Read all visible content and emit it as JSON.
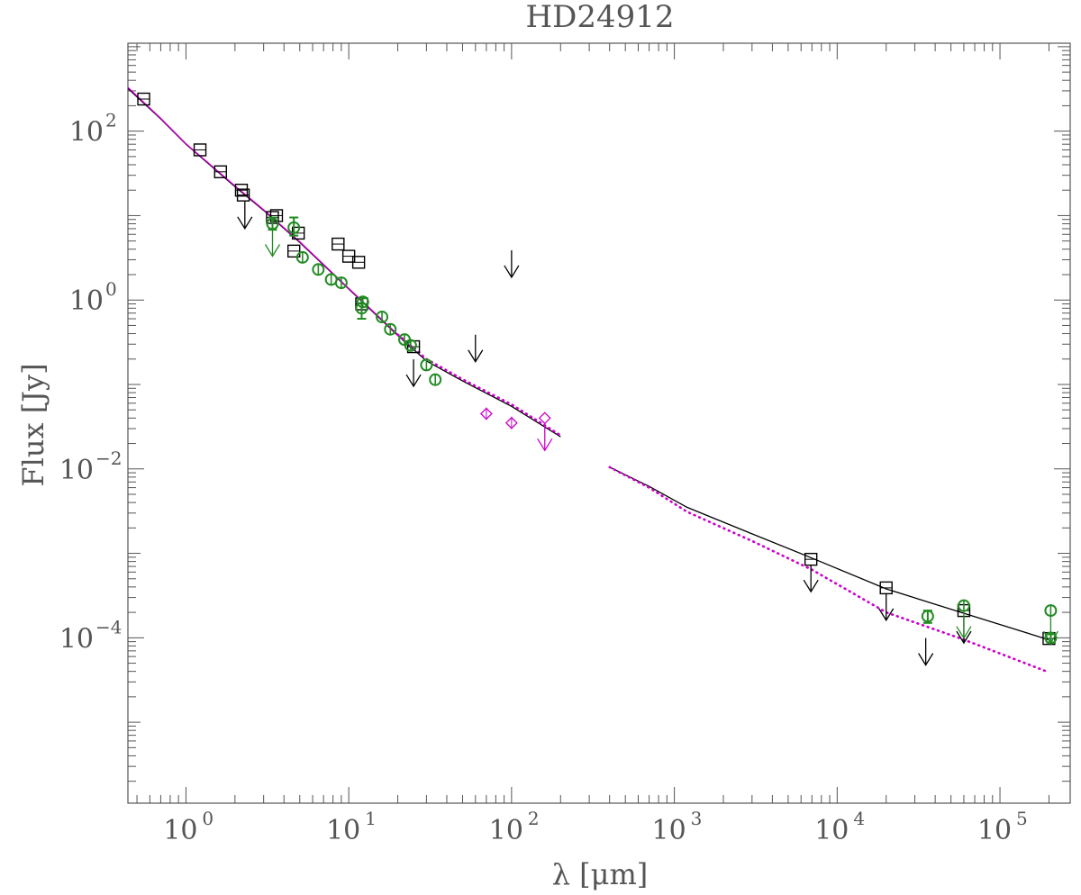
{
  "chart_data": {
    "type": "scatter",
    "title": "HD24912",
    "xlabel": "λ [μm]",
    "ylabel": "Flux [Jy]",
    "x_scale": "log",
    "y_scale": "log",
    "xlim": [
      0.44,
      270000
    ],
    "ylim": [
      1.1e-06,
      1100
    ],
    "grid": false,
    "legend": "none",
    "colors": {
      "black": "#000000",
      "green": "#228b22",
      "magenta": "#cc00cc",
      "axis": "#555555"
    },
    "x_ticks": [
      {
        "value": 1,
        "label": "10",
        "exp": "0"
      },
      {
        "value": 10,
        "label": "10",
        "exp": "1"
      },
      {
        "value": 100,
        "label": "10",
        "exp": "2"
      },
      {
        "value": 1000,
        "label": "10",
        "exp": "3"
      },
      {
        "value": 10000,
        "label": "10",
        "exp": "4"
      },
      {
        "value": 100000,
        "label": "10",
        "exp": "5"
      }
    ],
    "y_ticks": [
      {
        "value": 100,
        "label": "10",
        "exp": "2"
      },
      {
        "value": 1,
        "label": "10",
        "exp": "0"
      },
      {
        "value": 0.01,
        "label": "10",
        "exp": "−2"
      },
      {
        "value": 0.0001,
        "label": "10",
        "exp": "−4"
      }
    ],
    "model_lines": [
      {
        "style": "solid",
        "color": "#000000",
        "points": [
          [
            0.44,
            320
          ],
          [
            0.7,
            140
          ],
          [
            1,
            70
          ],
          [
            2,
            22
          ],
          [
            3,
            11.5
          ],
          [
            5,
            4.8
          ],
          [
            10,
            1.35
          ],
          [
            20,
            0.38
          ],
          [
            30,
            0.19
          ],
          [
            50,
            0.11
          ],
          [
            100,
            0.055
          ],
          [
            200,
            0.024
          ]
        ]
      },
      {
        "style": "solid",
        "color": "#cc00cc",
        "points": [
          [
            0.44,
            330
          ],
          [
            0.7,
            142
          ],
          [
            1,
            71
          ],
          [
            2,
            22.5
          ],
          [
            3,
            11.7
          ],
          [
            5,
            4.9
          ],
          [
            10,
            1.37
          ],
          [
            20,
            0.39
          ]
        ]
      },
      {
        "style": "dotted",
        "color": "#cc00cc",
        "points": [
          [
            20,
            0.39
          ],
          [
            30,
            0.2
          ],
          [
            50,
            0.115
          ],
          [
            100,
            0.058
          ],
          [
            200,
            0.025
          ]
        ]
      },
      {
        "style": "solid",
        "color": "#000000",
        "points": [
          [
            400,
            0.0105
          ],
          [
            700,
            0.0062
          ],
          [
            1200,
            0.0035
          ],
          [
            3000,
            0.0017
          ],
          [
            7000,
            0.00088
          ],
          [
            20000,
            0.00038
          ],
          [
            60000,
            0.000195
          ],
          [
            200000,
            9.45e-05
          ]
        ]
      },
      {
        "style": "dotted",
        "color": "#cc00cc",
        "points": [
          [
            400,
            0.0105
          ],
          [
            700,
            0.006
          ],
          [
            1200,
            0.0031
          ],
          [
            3000,
            0.0014
          ],
          [
            7000,
            0.00064
          ],
          [
            20000,
            0.0002
          ],
          [
            60000,
            9.5e-05
          ],
          [
            200000,
            3.9e-05
          ]
        ]
      }
    ],
    "series": [
      {
        "marker": "square",
        "color": "#000000",
        "points": [
          {
            "x": 0.55,
            "y": 240
          },
          {
            "x": 1.22,
            "y": 60
          },
          {
            "x": 1.63,
            "y": 33
          },
          {
            "x": 2.19,
            "y": 20
          },
          {
            "x": 2.25,
            "y": 17.5
          },
          {
            "x": 3.4,
            "y": 9.5
          },
          {
            "x": 3.6,
            "y": 10
          },
          {
            "x": 4.6,
            "y": 3.8
          },
          {
            "x": 4.9,
            "y": 6.2
          },
          {
            "x": 8.6,
            "y": 4.6
          },
          {
            "x": 10,
            "y": 3.3
          },
          {
            "x": 11.5,
            "y": 2.8
          },
          {
            "x": 12,
            "y": 0.9
          },
          {
            "x": 25,
            "y": 0.28
          },
          {
            "x": 6900,
            "y": 0.00085
          },
          {
            "x": 20000,
            "y": 0.00039
          },
          {
            "x": 60000,
            "y": 0.00021
          },
          {
            "x": 200000,
            "y": 9.8e-05
          }
        ]
      },
      {
        "marker": "square_upper_limit",
        "color": "#000000",
        "points": [
          {
            "x": 2.3,
            "y": 17
          },
          {
            "x": 25,
            "y": 0.23
          },
          {
            "x": 60,
            "y": 0.45
          },
          {
            "x": 100,
            "y": 4.5
          },
          {
            "x": 6900,
            "y": 0.00085
          },
          {
            "x": 20000,
            "y": 0.00039
          },
          {
            "x": 35000,
            "y": 0.000115
          },
          {
            "x": 60000,
            "y": 0.00021
          }
        ]
      },
      {
        "marker": "circle",
        "color": "#228b22",
        "points": [
          {
            "x": 3.4,
            "y": 8,
            "err": [
              6.8,
              9.5
            ]
          },
          {
            "x": 4.6,
            "y": 7.2,
            "err": [
              5.8,
              9.5
            ]
          },
          {
            "x": 5.2,
            "y": 3.2
          },
          {
            "x": 6.5,
            "y": 2.3
          },
          {
            "x": 7.8,
            "y": 1.75
          },
          {
            "x": 9,
            "y": 1.6
          },
          {
            "x": 12,
            "y": 0.8,
            "err": [
              0.6,
              1.05
            ]
          },
          {
            "x": 12.2,
            "y": 0.95
          },
          {
            "x": 16,
            "y": 0.63
          },
          {
            "x": 18,
            "y": 0.45
          },
          {
            "x": 22,
            "y": 0.34
          },
          {
            "x": 24,
            "y": 0.29
          },
          {
            "x": 30,
            "y": 0.17
          },
          {
            "x": 34,
            "y": 0.114
          },
          {
            "x": 36000,
            "y": 0.00018,
            "err": [
              0.00015,
              0.00021
            ]
          },
          {
            "x": 60000,
            "y": 0.00024
          },
          {
            "x": 205000,
            "y": 9.95e-05,
            "err": [
              8.8e-05,
              0.00011
            ]
          },
          {
            "x": 205000,
            "y": 0.00021
          }
        ]
      },
      {
        "marker": "circle_upper_limit",
        "color": "#228b22",
        "points": [
          {
            "x": 3.4,
            "y": 8
          },
          {
            "x": 60000,
            "y": 0.00024
          },
          {
            "x": 205000,
            "y": 0.00021
          }
        ]
      },
      {
        "marker": "diamond",
        "color": "#cc00cc",
        "points": [
          {
            "x": 70,
            "y": 0.045
          },
          {
            "x": 100,
            "y": 0.035
          }
        ]
      },
      {
        "marker": "diamond_upper_limit",
        "color": "#cc00cc",
        "points": [
          {
            "x": 160,
            "y": 0.04
          }
        ]
      }
    ]
  }
}
